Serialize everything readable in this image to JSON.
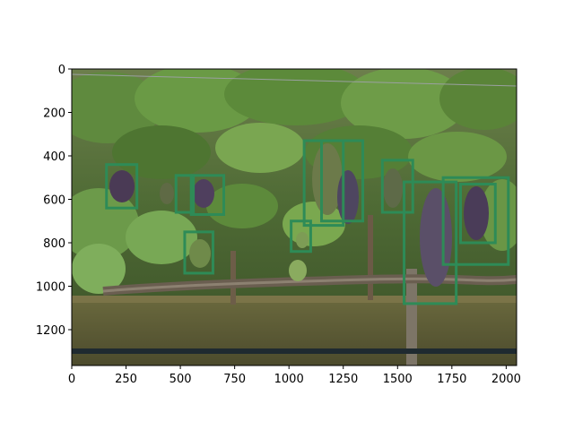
{
  "figure": {
    "image_description_icon": "vineyard-grapes-photo",
    "box_color": "#2e8b57",
    "x_axis": {
      "range": [
        0,
        2048
      ],
      "ticks": [
        0,
        250,
        500,
        750,
        1000,
        1250,
        1500,
        1750,
        2000
      ],
      "tick_labels": [
        "0",
        "250",
        "500",
        "750",
        "1000",
        "1250",
        "1500",
        "1750",
        "2000"
      ]
    },
    "y_axis": {
      "range": [
        1365,
        0
      ],
      "ticks": [
        0,
        200,
        400,
        600,
        800,
        1000,
        1200
      ],
      "tick_labels": [
        "0",
        "200",
        "400",
        "600",
        "800",
        "1000",
        "1200"
      ]
    },
    "detections": [
      {
        "x0": 160,
        "y0": 440,
        "x1": 300,
        "y1": 640
      },
      {
        "x0": 480,
        "y0": 490,
        "x1": 560,
        "y1": 660
      },
      {
        "x0": 550,
        "y0": 490,
        "x1": 700,
        "y1": 670
      },
      {
        "x0": 520,
        "y0": 750,
        "x1": 650,
        "y1": 940
      },
      {
        "x0": 1010,
        "y0": 700,
        "x1": 1100,
        "y1": 840
      },
      {
        "x0": 1070,
        "y0": 330,
        "x1": 1250,
        "y1": 720
      },
      {
        "x0": 1150,
        "y0": 330,
        "x1": 1340,
        "y1": 700
      },
      {
        "x0": 1430,
        "y0": 420,
        "x1": 1570,
        "y1": 660
      },
      {
        "x0": 1530,
        "y0": 520,
        "x1": 1770,
        "y1": 1080
      },
      {
        "x0": 1710,
        "y0": 500,
        "x1": 2010,
        "y1": 900
      },
      {
        "x0": 1790,
        "y0": 530,
        "x1": 1950,
        "y1": 800
      }
    ]
  }
}
